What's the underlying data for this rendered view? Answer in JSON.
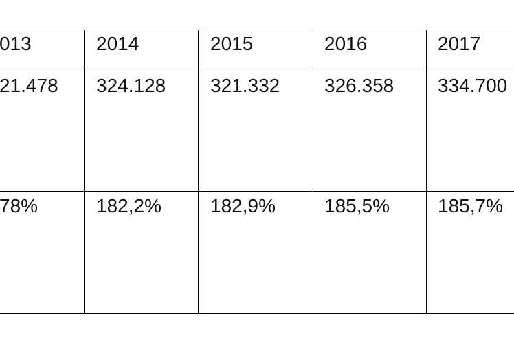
{
  "table": {
    "rows": [
      [
        "013",
        "2014",
        "2015",
        "2016",
        "2017"
      ],
      [
        "21.478",
        "324.128",
        "321.332",
        "326.358",
        "334.700"
      ],
      [
        "78%",
        "182,2%",
        "182,9%",
        "185,5%",
        "185,7%"
      ]
    ]
  }
}
